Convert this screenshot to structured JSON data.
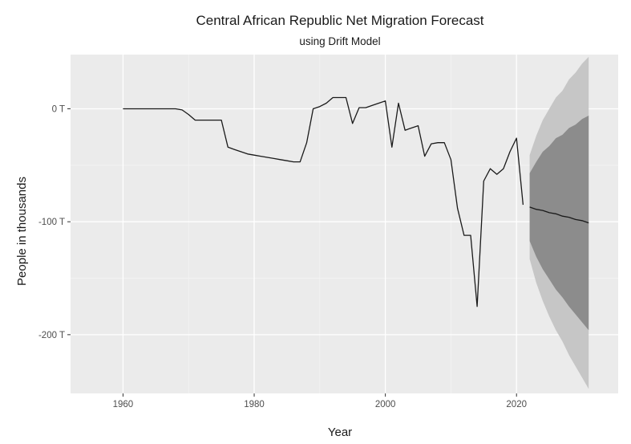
{
  "chart_data": {
    "type": "line",
    "title": "Central African Republic Net Migration Forecast",
    "subtitle": "using Drift Model",
    "xlabel": "Year",
    "ylabel": "People in thousands",
    "xlim": [
      1952,
      2035.5
    ],
    "ylim": [
      -252,
      48
    ],
    "x_ticks": [
      1960,
      1980,
      2000,
      2020
    ],
    "x_tick_labels": [
      "1960",
      "1980",
      "2000",
      "2020"
    ],
    "y_ticks": [
      0,
      -100,
      -200
    ],
    "y_tick_labels": [
      "0 T",
      "-100 T",
      "-200 T"
    ],
    "grid": true,
    "legend": "none",
    "colors": {
      "panel": "#ebebeb",
      "grid_major": "#ffffff",
      "grid_minor": "#f4f4f4",
      "line": "#1a1a1a",
      "band_95": "#c6c6c6",
      "band_80": "#8c8c8c"
    },
    "series": [
      {
        "name": "observed",
        "x": [
          1960,
          1961,
          1962,
          1963,
          1964,
          1965,
          1966,
          1967,
          1968,
          1969,
          1970,
          1971,
          1972,
          1973,
          1974,
          1975,
          1976,
          1977,
          1978,
          1979,
          1980,
          1981,
          1982,
          1983,
          1984,
          1985,
          1986,
          1987,
          1988,
          1989,
          1990,
          1991,
          1992,
          1993,
          1994,
          1995,
          1996,
          1997,
          1998,
          1999,
          2000,
          2001,
          2002,
          2003,
          2004,
          2005,
          2006,
          2007,
          2008,
          2009,
          2010,
          2011,
          2012,
          2013,
          2014,
          2015,
          2016,
          2017,
          2018,
          2019,
          2020,
          2021
        ],
        "values": [
          0,
          0,
          0,
          0,
          0,
          0,
          0,
          0,
          0,
          -1,
          -5,
          -10,
          -10,
          -10,
          -10,
          -10,
          -34,
          -36,
          -38,
          -40,
          -41,
          -42,
          -43,
          -44,
          -45,
          -46,
          -47,
          -47,
          -30,
          0,
          2,
          5,
          10,
          10,
          10,
          -13,
          1,
          1,
          3,
          5,
          7,
          -34,
          5,
          -19,
          -17,
          -15,
          -42,
          -31,
          -30,
          -30,
          -45,
          -88,
          -112,
          -112,
          -175,
          -64,
          -53,
          -58,
          -53,
          -38,
          -26,
          -85
        ]
      },
      {
        "name": "forecast",
        "x": [
          2022,
          2023,
          2024,
          2025,
          2026,
          2027,
          2028,
          2029,
          2030,
          2031
        ],
        "values": [
          -87,
          -89,
          -90,
          -92,
          -93,
          -95,
          -96,
          -98,
          -99,
          -101
        ],
        "lower80": [
          -117,
          -131,
          -142,
          -151,
          -160,
          -167,
          -175,
          -182,
          -189,
          -196
        ],
        "upper80": [
          -57,
          -47,
          -38,
          -33,
          -26,
          -23,
          -17,
          -14,
          -9,
          -6
        ],
        "lower95": [
          -133,
          -154,
          -170,
          -184,
          -196,
          -206,
          -218,
          -228,
          -238,
          -248
        ],
        "upper95": [
          -41,
          -24,
          -10,
          0,
          10,
          16,
          26,
          32,
          40,
          46
        ]
      }
    ]
  }
}
